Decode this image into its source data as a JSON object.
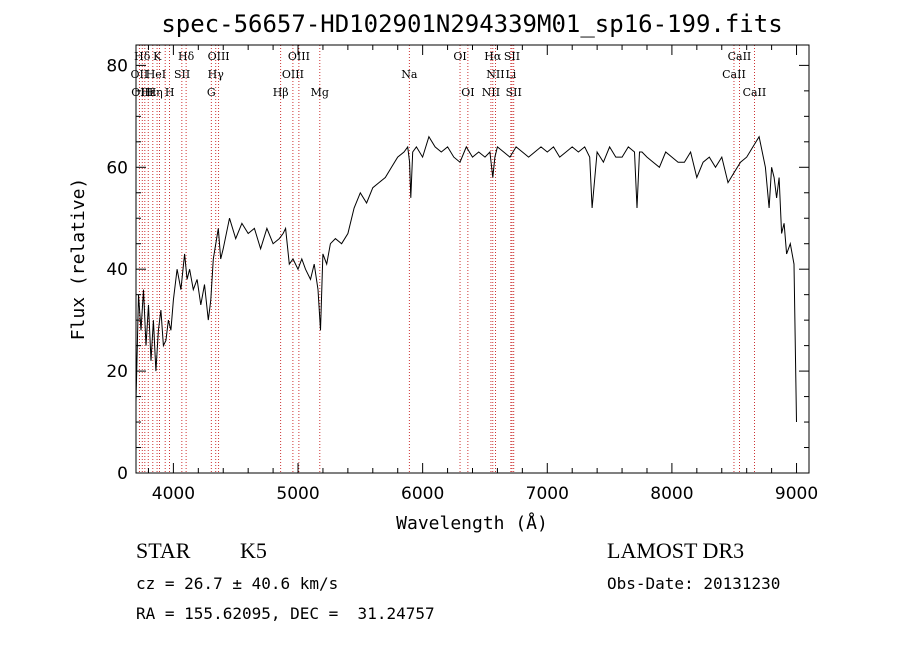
{
  "chart_data": {
    "type": "line",
    "title": "spec-56657-HD102901N294339M01_sp16-199.fits",
    "xlabel": "Wavelength (Å)",
    "ylabel": "Flux (relative)",
    "xlim": [
      3700,
      9100
    ],
    "ylim": [
      0,
      84
    ],
    "xticks": [
      4000,
      5000,
      6000,
      7000,
      8000,
      9000
    ],
    "yticks": [
      0,
      20,
      40,
      60,
      80
    ],
    "grid": false,
    "series": [
      {
        "x": [
          3700,
          3720,
          3740,
          3760,
          3780,
          3800,
          3820,
          3840,
          3860,
          3880,
          3900,
          3920,
          3940,
          3960,
          3980,
          4000,
          4030,
          4060,
          4090,
          4110,
          4130,
          4160,
          4190,
          4220,
          4250,
          4280,
          4300,
          4320,
          4340,
          4360,
          4380,
          4400,
          4450,
          4500,
          4550,
          4600,
          4650,
          4700,
          4750,
          4800,
          4850,
          4880,
          4900,
          4930,
          4960,
          5000,
          5030,
          5060,
          5100,
          5130,
          5160,
          5180,
          5200,
          5230,
          5260,
          5300,
          5350,
          5400,
          5450,
          5500,
          5550,
          5600,
          5650,
          5700,
          5750,
          5800,
          5850,
          5880,
          5895,
          5905,
          5920,
          5950,
          6000,
          6050,
          6100,
          6150,
          6200,
          6250,
          6300,
          6350,
          6400,
          6450,
          6500,
          6540,
          6563,
          6580,
          6600,
          6650,
          6700,
          6750,
          6800,
          6850,
          6900,
          6950,
          7000,
          7050,
          7100,
          7150,
          7200,
          7250,
          7300,
          7340,
          7360,
          7400,
          7450,
          7500,
          7550,
          7600,
          7650,
          7700,
          7720,
          7740,
          7760,
          7800,
          7850,
          7900,
          7950,
          8000,
          8050,
          8100,
          8150,
          8200,
          8250,
          8300,
          8350,
          8400,
          8450,
          8500,
          8550,
          8600,
          8650,
          8700,
          8750,
          8780,
          8800,
          8820,
          8840,
          8860,
          8880,
          8900,
          8920,
          8950,
          8980,
          9000
        ],
        "y": [
          14,
          35,
          28,
          36,
          25,
          33,
          22,
          30,
          20,
          28,
          32,
          25,
          26,
          30,
          28,
          34,
          40,
          36,
          43,
          38,
          40,
          36,
          38,
          33,
          37,
          30,
          34,
          42,
          45,
          48,
          42,
          44,
          50,
          46,
          49,
          47,
          48,
          44,
          48,
          45,
          46,
          47,
          48,
          41,
          42,
          40,
          42,
          40,
          38,
          41,
          36,
          28,
          43,
          41,
          45,
          46,
          45,
          47,
          52,
          55,
          53,
          56,
          57,
          58,
          60,
          62,
          63,
          64,
          61,
          54,
          63,
          64,
          62,
          66,
          64,
          63,
          64,
          62,
          61,
          64,
          62,
          63,
          62,
          63,
          58,
          62,
          64,
          63,
          62,
          64,
          63,
          62,
          63,
          64,
          63,
          64,
          62,
          63,
          64,
          63,
          64,
          62,
          52,
          63,
          61,
          64,
          62,
          62,
          64,
          63,
          52,
          63,
          63,
          62,
          61,
          60,
          63,
          62,
          61,
          61,
          63,
          58,
          61,
          62,
          60,
          62,
          57,
          59,
          61,
          62,
          64,
          66,
          60,
          52,
          60,
          58,
          54,
          58,
          47,
          49,
          43,
          45,
          41,
          10
        ]
      }
    ],
    "annotations": [
      {
        "text": "Hδ",
        "x": 3750,
        "row": 1
      },
      {
        "text": "OII",
        "x": 3727,
        "row": 2
      },
      {
        "text": "OIII",
        "x": 3750,
        "row": 3
      },
      {
        "text": "Hε",
        "x": 3800,
        "row": 3
      },
      {
        "text": "K",
        "x": 3870,
        "row": 1
      },
      {
        "text": "HeI",
        "x": 3860,
        "row": 2
      },
      {
        "text": "Hη",
        "x": 3850,
        "row": 3
      },
      {
        "text": "H",
        "x": 3970,
        "row": 3
      },
      {
        "text": "Hδ",
        "x": 4102,
        "row": 1
      },
      {
        "text": "SII",
        "x": 4070,
        "row": 2
      },
      {
        "text": "OIII",
        "x": 4363,
        "row": 1
      },
      {
        "text": "Hγ",
        "x": 4340,
        "row": 2
      },
      {
        "text": "G",
        "x": 4304,
        "row": 3
      },
      {
        "text": "Hβ",
        "x": 4861,
        "row": 3
      },
      {
        "text": "OIII",
        "x": 5007,
        "row": 1
      },
      {
        "text": "OIII",
        "x": 4959,
        "row": 2
      },
      {
        "text": "Mg",
        "x": 5175,
        "row": 3
      },
      {
        "text": "Na",
        "x": 5893,
        "row": 2
      },
      {
        "text": "OI",
        "x": 6300,
        "row": 1
      },
      {
        "text": "OI",
        "x": 6363,
        "row": 3
      },
      {
        "text": "Hα",
        "x": 6563,
        "row": 1
      },
      {
        "text": "SII",
        "x": 6717,
        "row": 1
      },
      {
        "text": "NII",
        "x": 6584,
        "row": 2
      },
      {
        "text": "Li",
        "x": 6708,
        "row": 2
      },
      {
        "text": "NII",
        "x": 6548,
        "row": 3
      },
      {
        "text": "SII",
        "x": 6731,
        "row": 3
      },
      {
        "text": "CaII",
        "x": 8542,
        "row": 1
      },
      {
        "text": "CaII",
        "x": 8498,
        "row": 2
      },
      {
        "text": "CaII",
        "x": 8662,
        "row": 3
      }
    ],
    "line_markers": [
      3727,
      3750,
      3771,
      3798,
      3835,
      3869,
      3889,
      3934,
      3969,
      4068,
      4102,
      4304,
      4340,
      4363,
      4861,
      4959,
      5007,
      5175,
      5893,
      6300,
      6363,
      6548,
      6563,
      6584,
      6708,
      6717,
      6731,
      8498,
      8542,
      8662
    ]
  },
  "info": {
    "class_label": "STAR",
    "subclass": "K5",
    "survey": "LAMOST DR3",
    "cz": "cz = 26.7 ± 40.6 km/s",
    "obs_date": "Obs-Date: 20131230",
    "coords": "RA = 155.62095, DEC =  31.24757"
  }
}
